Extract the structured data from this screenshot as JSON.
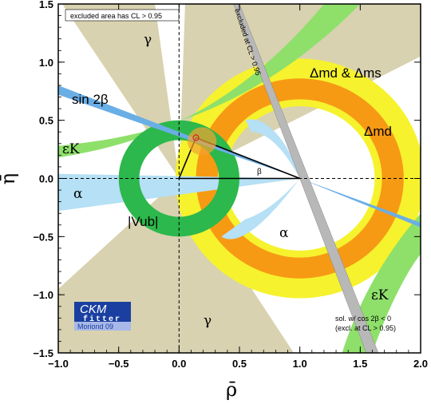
{
  "chart_data": {
    "type": "scatter",
    "title": "",
    "xlabel": "ρ̄",
    "ylabel": "η̄",
    "xlim": [
      -1.0,
      2.0
    ],
    "ylim": [
      -1.5,
      1.5
    ],
    "xticks": [
      "−1.0",
      "−0.5",
      "0.0",
      "0.5",
      "1.0",
      "1.5",
      "2.0"
    ],
    "yticks": [
      "1.5",
      "1.0",
      "0.5",
      "0.0",
      "−0.5",
      "−1.0",
      "−1.5"
    ],
    "grid": false,
    "apex": {
      "x": 0.14,
      "y": 0.35
    },
    "regions": {
      "gamma": "γ",
      "sin2beta": "sin 2β",
      "epsK": "εK",
      "alpha": "α",
      "vub": "|Vub|",
      "dmd_dms": "Δmd & Δms",
      "dmd": "Δmd",
      "beta_angle": "β"
    },
    "notes": {
      "excluded_area": "excluded area has CL > 0.95",
      "excluded_band": "excluded at CL > 0.95",
      "sol_line1": "sol. w/ cos 2β < 0",
      "sol_line2": "(excl. at CL > 0.95)"
    },
    "logo": {
      "line1": "CKM",
      "line2": "fitter",
      "line3": "Moriond 09"
    },
    "colors": {
      "gamma": "#d8d2b0",
      "sin2beta": "#6aaee6",
      "epsK": "#8ee06a",
      "alpha": "#b5e0f5",
      "vub": "#2cb84c",
      "dmd_yellow": "#f6f22e",
      "dms_orange": "#f69a14",
      "excluded": "#b8b8b8",
      "triangle": "#000000",
      "apex_fill": "#f4a230",
      "apex_line": "#e02020",
      "logo_blue": "#1a3fa0",
      "logo_light": "#a8b8e8"
    }
  }
}
